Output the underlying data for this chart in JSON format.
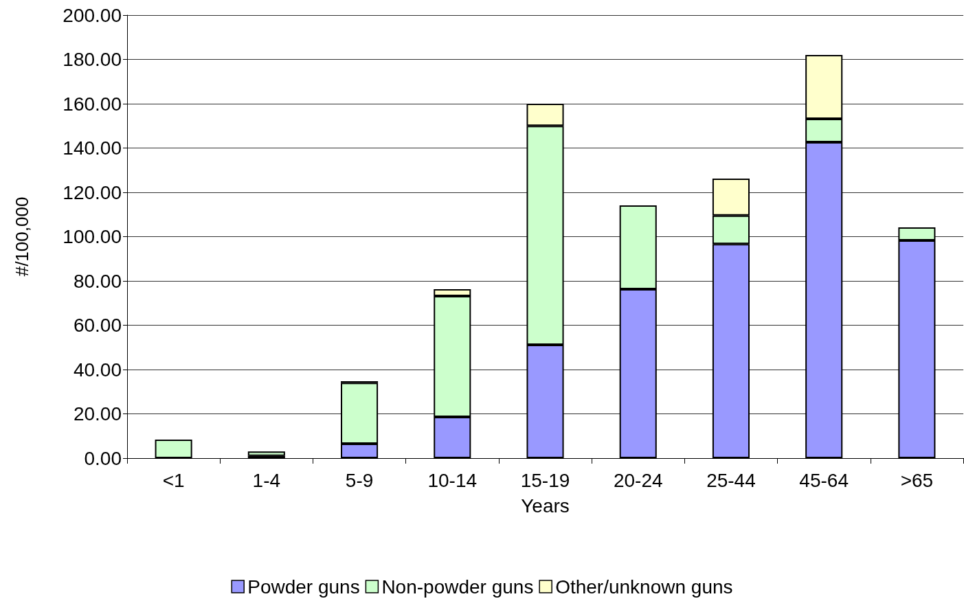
{
  "chart_data": {
    "type": "bar",
    "stacked": true,
    "xlabel": "Years",
    "ylabel": "#/100,000",
    "categories": [
      "<1",
      "1-4",
      "5-9",
      "10-14",
      "15-19",
      "20-24",
      "25-44",
      "45-64",
      ">65"
    ],
    "series": [
      {
        "name": "Powder guns",
        "color": "#9999ff",
        "values": [
          0,
          1,
          6.5,
          18.6,
          51.2,
          76.3,
          96.7,
          142.6,
          98.3
        ]
      },
      {
        "name": "Non-powder guns",
        "color": "#ccffcc",
        "values": [
          8.4,
          2,
          27.5,
          54.6,
          98.8,
          37.8,
          12.8,
          10.6,
          5.9
        ]
      },
      {
        "name": "Other/unknown guns",
        "color": "#ffffcc",
        "values": [
          0,
          0,
          0.7,
          3.1,
          10,
          0,
          16.7,
          28.8,
          0
        ]
      }
    ],
    "ylim": [
      0,
      200
    ],
    "yticks": [
      {
        "value": 0,
        "label": "0.00"
      },
      {
        "value": 20,
        "label": "20.00"
      },
      {
        "value": 40,
        "label": "40.00"
      },
      {
        "value": 60,
        "label": "60.00"
      },
      {
        "value": 80,
        "label": "80.00"
      },
      {
        "value": 100,
        "label": "100.00"
      },
      {
        "value": 120,
        "label": "120.00"
      },
      {
        "value": 140,
        "label": "140.00"
      },
      {
        "value": 160,
        "label": "160.00"
      },
      {
        "value": 180,
        "label": "180.00"
      },
      {
        "value": 200,
        "label": "200.00"
      }
    ],
    "grid": "y",
    "legend": "bottom"
  }
}
